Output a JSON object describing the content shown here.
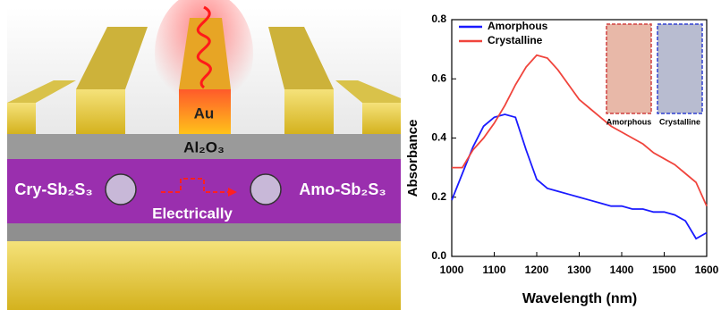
{
  "diagram": {
    "au_label": "Au",
    "oxide_label": "Al₂O₃",
    "left_label": "Cry-Sb₂S₃",
    "right_label": "Amo-Sb₂S₃",
    "arrow_label": "Electrically"
  },
  "chart_data": {
    "type": "line",
    "xlabel": "Wavelength (nm)",
    "ylabel": "Absorbance",
    "x": [
      1000,
      1025,
      1050,
      1075,
      1100,
      1125,
      1150,
      1175,
      1200,
      1225,
      1250,
      1275,
      1300,
      1325,
      1350,
      1375,
      1400,
      1425,
      1450,
      1475,
      1500,
      1525,
      1550,
      1575,
      1600
    ],
    "series": [
      {
        "name": "Amorphous",
        "color": "#1a1aff",
        "values": [
          0.19,
          0.28,
          0.37,
          0.44,
          0.47,
          0.48,
          0.47,
          0.36,
          0.26,
          0.23,
          0.22,
          0.21,
          0.2,
          0.19,
          0.18,
          0.17,
          0.17,
          0.16,
          0.16,
          0.15,
          0.15,
          0.14,
          0.12,
          0.06,
          0.08
        ]
      },
      {
        "name": "Crystalline",
        "color": "#f0443c",
        "values": [
          0.3,
          0.3,
          0.36,
          0.4,
          0.45,
          0.51,
          0.58,
          0.64,
          0.68,
          0.67,
          0.63,
          0.58,
          0.53,
          0.5,
          0.47,
          0.44,
          0.42,
          0.4,
          0.38,
          0.35,
          0.33,
          0.31,
          0.28,
          0.25,
          0.17
        ]
      }
    ],
    "xlim": [
      1000,
      1600
    ],
    "xticks": [
      1000,
      1100,
      1200,
      1300,
      1400,
      1500,
      1600
    ],
    "ylim": [
      0,
      0.8
    ],
    "yticks": [
      {
        "value": 0,
        "label": "0.0"
      },
      0.2,
      0.4,
      0.6,
      0.8
    ],
    "legend": "upper left",
    "inset_labels": [
      "Amorphous",
      "Crystalline"
    ]
  }
}
